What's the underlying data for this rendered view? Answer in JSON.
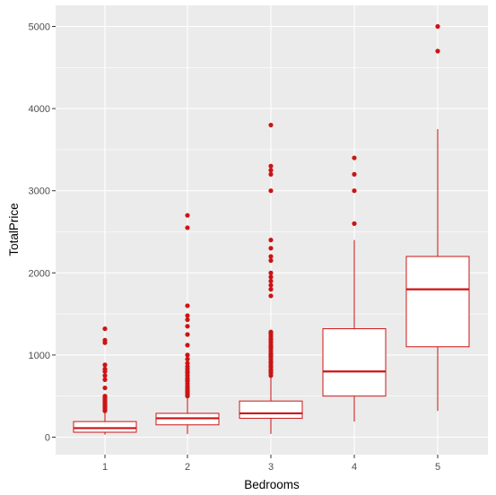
{
  "chart_data": {
    "type": "boxplot",
    "xlabel": "Bedrooms",
    "ylabel": "TotalPrice",
    "categories": [
      "1",
      "2",
      "3",
      "4",
      "5"
    ],
    "ylim": [
      -200,
      5200
    ],
    "yticks": [
      0,
      1000,
      2000,
      3000,
      4000,
      5000
    ],
    "grid": true,
    "colors": {
      "panel": "#ebebeb",
      "grid": "#ffffff",
      "box": "#cc1414",
      "fill": "#ffffff"
    },
    "boxes": [
      {
        "category": "1",
        "lower_whisker": 30,
        "q1": 60,
        "median": 110,
        "q3": 190,
        "upper_whisker": 300,
        "outliers": [
          320,
          340,
          360,
          380,
          400,
          420,
          440,
          460,
          480,
          500,
          600,
          700,
          750,
          800,
          830,
          880,
          1150,
          1180,
          1320
        ]
      },
      {
        "category": "2",
        "lower_whisker": 40,
        "q1": 150,
        "median": 230,
        "q3": 290,
        "upper_whisker": 480,
        "outliers": [
          500,
          520,
          540,
          560,
          580,
          600,
          620,
          650,
          680,
          700,
          720,
          750,
          780,
          800,
          830,
          860,
          900,
          950,
          1000,
          1120,
          1250,
          1350,
          1430,
          1480,
          1600,
          2550,
          2700
        ]
      },
      {
        "category": "3",
        "lower_whisker": 40,
        "q1": 230,
        "median": 290,
        "q3": 440,
        "upper_whisker": 730,
        "outliers": [
          750,
          780,
          800,
          820,
          850,
          870,
          900,
          920,
          950,
          980,
          1000,
          1020,
          1050,
          1080,
          1100,
          1120,
          1150,
          1180,
          1200,
          1230,
          1260,
          1280,
          1720,
          1800,
          1850,
          1900,
          1950,
          2000,
          2150,
          2200,
          2300,
          2400,
          3000,
          3200,
          3250,
          3300,
          3800
        ]
      },
      {
        "category": "4",
        "lower_whisker": 190,
        "q1": 500,
        "median": 800,
        "q3": 1320,
        "upper_whisker": 2400,
        "outliers": [
          2600,
          3000,
          3200,
          3400
        ]
      },
      {
        "category": "5",
        "lower_whisker": 320,
        "q1": 1100,
        "median": 1800,
        "q3": 2200,
        "upper_whisker": 3750,
        "outliers": [
          4700,
          5000
        ]
      }
    ]
  }
}
